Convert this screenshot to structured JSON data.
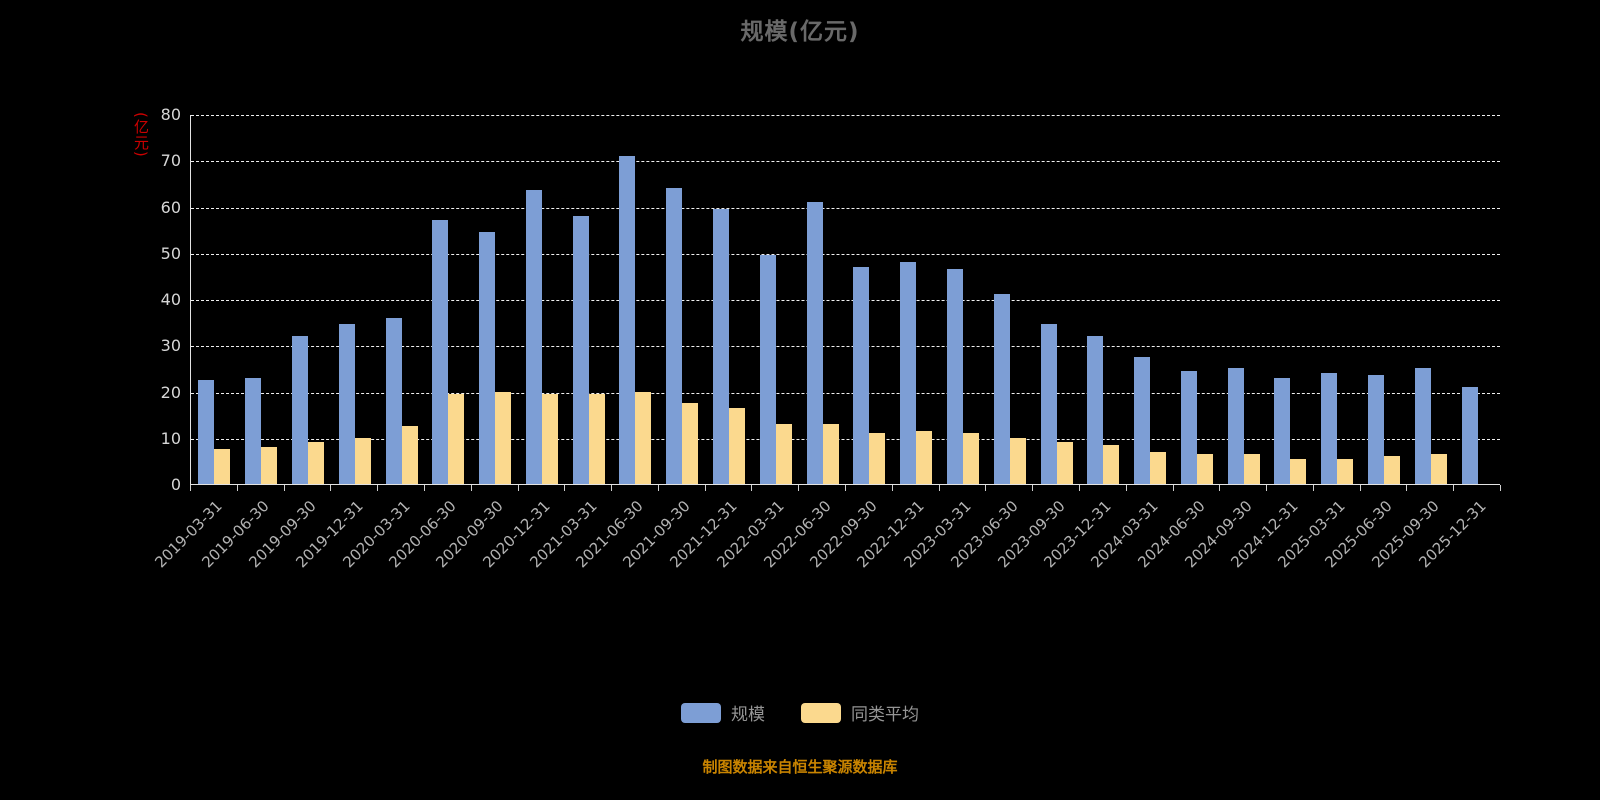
{
  "page": {
    "background": "#000000"
  },
  "chart_data": {
    "type": "bar",
    "title": "规模(亿元)",
    "ylabel": "(亿元)",
    "ylabel_color": "#cc0000",
    "xlabel": "",
    "ylim": [
      0,
      80
    ],
    "y_ticks": [
      0,
      10,
      20,
      30,
      40,
      50,
      60,
      70,
      80
    ],
    "grid": true,
    "legend_position": "bottom",
    "source_note": "制图数据来自恒生聚源数据库",
    "categories": [
      "2019-03-31",
      "2019-06-30",
      "2019-09-30",
      "2019-12-31",
      "2020-03-31",
      "2020-06-30",
      "2020-09-30",
      "2020-12-31",
      "2021-03-31",
      "2021-06-30",
      "2021-09-30",
      "2021-12-31",
      "2022-03-31",
      "2022-06-30",
      "2022-09-30",
      "2022-12-31",
      "2023-03-31",
      "2023-06-30",
      "2023-09-30",
      "2023-12-31",
      "2024-03-31",
      "2024-06-30",
      "2024-09-30",
      "2024-12-31",
      "2025-03-31",
      "2025-06-30",
      "2025-09-30",
      "2025-12-31"
    ],
    "series": [
      {
        "name": "规模",
        "color": "#7d9ed5",
        "border_color": "#6librar588c2",
        "values": [
          22.5,
          23,
          32,
          34.5,
          36,
          57,
          54.5,
          63.5,
          58,
          71,
          64,
          59.5,
          49.5,
          61,
          47,
          48,
          46.5,
          41,
          34.5,
          32,
          27.5,
          24.5,
          25,
          23,
          24,
          23.5,
          25,
          21
        ]
      },
      {
        "name": "同类平均",
        "color": "#fbd98e",
        "border_color": "#e6bc63",
        "values": [
          7.5,
          8,
          9,
          10,
          12.5,
          19.5,
          20,
          19.5,
          19.5,
          20,
          17.5,
          16.5,
          13,
          13,
          11,
          11.5,
          11,
          10,
          9,
          8.5,
          7,
          6.5,
          6.5,
          5.5,
          5.5,
          6,
          6.5,
          null
        ]
      }
    ]
  }
}
